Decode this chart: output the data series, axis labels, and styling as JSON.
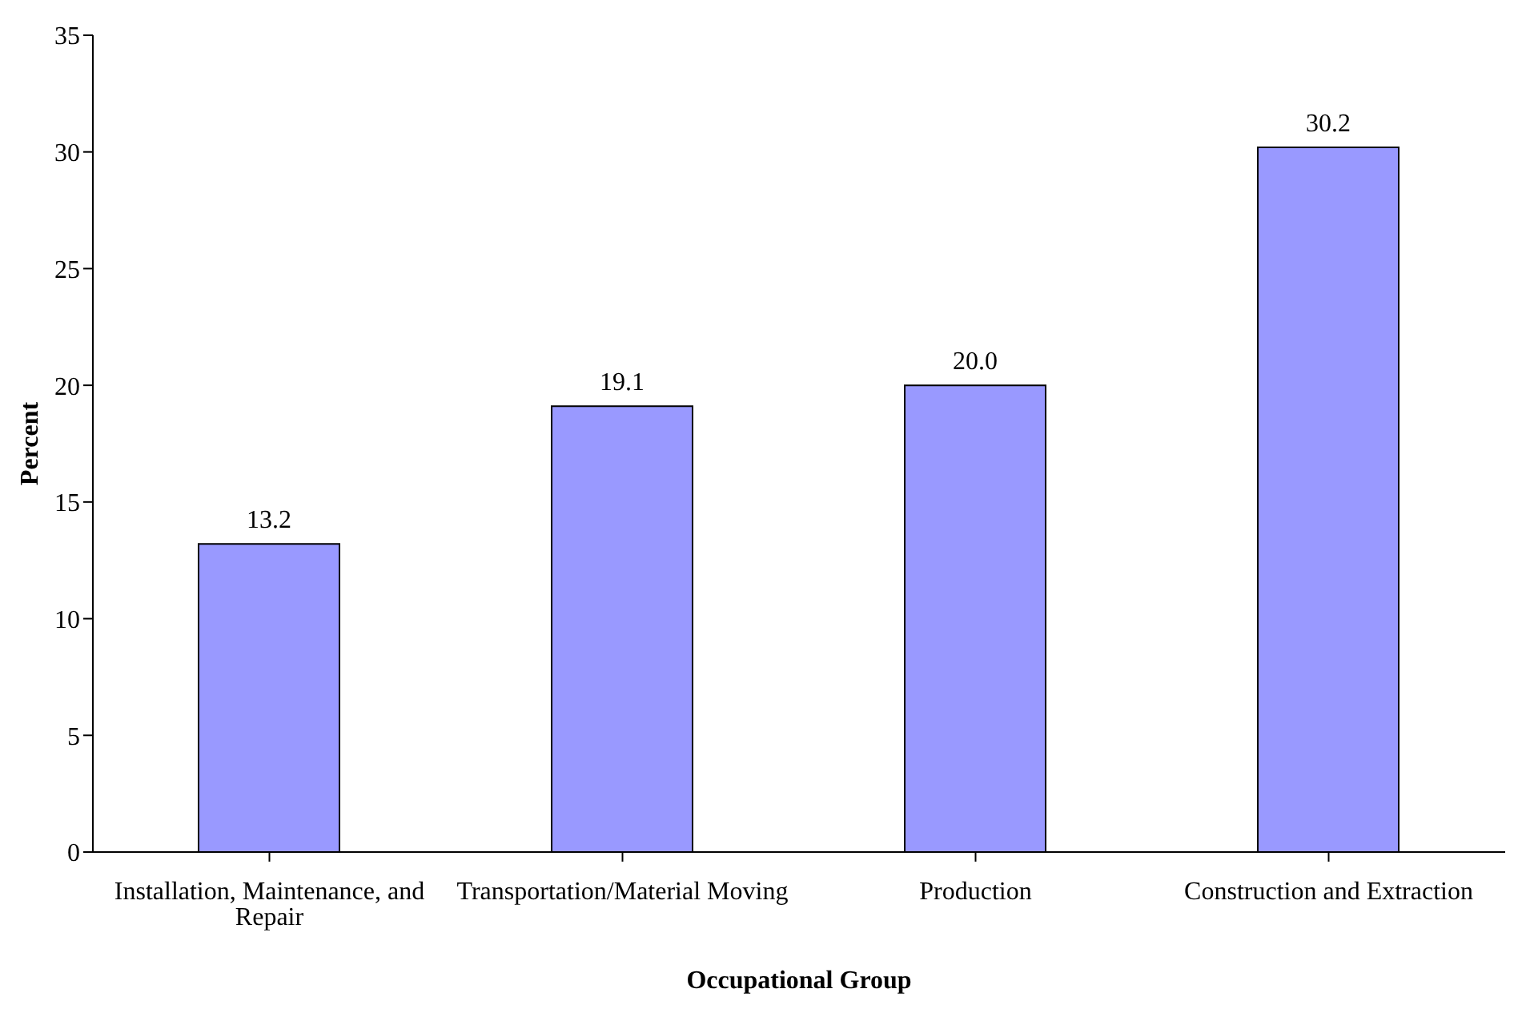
{
  "chart_data": {
    "type": "bar",
    "xlabel": "Occupational Group",
    "ylabel": "Percent",
    "categories": [
      "Installation, Maintenance, and Repair",
      "Transportation/Material Moving",
      "Production",
      "Construction and Extraction"
    ],
    "values": [
      13.2,
      19.1,
      20.0,
      30.2
    ],
    "value_labels": [
      "13.2",
      "19.1",
      "20.0",
      "30.2"
    ],
    "color": "#9999ff",
    "ylim": [
      0,
      35
    ],
    "yticks": [
      0,
      5,
      10,
      15,
      20,
      25,
      30,
      35
    ],
    "grid": false,
    "legend": false
  }
}
